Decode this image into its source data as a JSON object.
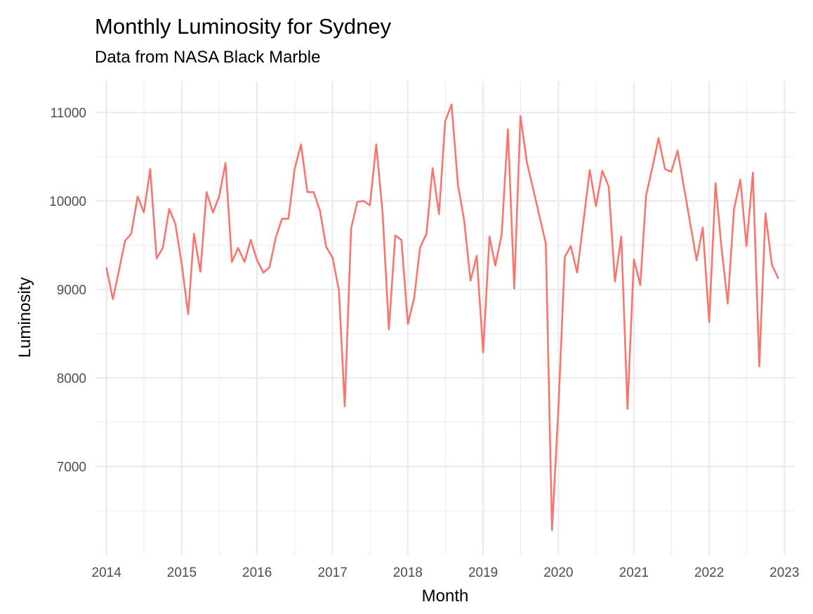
{
  "chart_data": {
    "type": "line",
    "title": "Monthly Luminosity for Sydney",
    "subtitle": "Data from NASA Black Marble",
    "xlabel": "Month",
    "ylabel": "Luminosity",
    "xlim": [
      "2013-11-12",
      "2023-02-20"
    ],
    "ylim": [
      6000,
      11350
    ],
    "x_ticks": [
      "2014",
      "2015",
      "2016",
      "2017",
      "2018",
      "2019",
      "2020",
      "2021",
      "2022",
      "2023"
    ],
    "y_ticks": [
      "7000",
      "8000",
      "9000",
      "10000",
      "11000"
    ],
    "grid": true,
    "series": [
      {
        "color": "#f8766d",
        "x": [
          "2014-01",
          "2014-02",
          "2014-03",
          "2014-04",
          "2014-05",
          "2014-06",
          "2014-07",
          "2014-08",
          "2014-09",
          "2014-10",
          "2014-11",
          "2014-12",
          "2015-01",
          "2015-02",
          "2015-03",
          "2015-04",
          "2015-05",
          "2015-06",
          "2015-07",
          "2015-08",
          "2015-09",
          "2015-10",
          "2015-11",
          "2015-12",
          "2016-01",
          "2016-02",
          "2016-03",
          "2016-04",
          "2016-05",
          "2016-06",
          "2016-07",
          "2016-08",
          "2016-09",
          "2016-10",
          "2016-11",
          "2016-12",
          "2017-01",
          "2017-02",
          "2017-03",
          "2017-04",
          "2017-05",
          "2017-06",
          "2017-07",
          "2017-08",
          "2017-09",
          "2017-10",
          "2017-11",
          "2017-12",
          "2018-01",
          "2018-02",
          "2018-03",
          "2018-04",
          "2018-05",
          "2018-06",
          "2018-07",
          "2018-08",
          "2018-09",
          "2018-10",
          "2018-11",
          "2018-12",
          "2019-01",
          "2019-02",
          "2019-03",
          "2019-04",
          "2019-05",
          "2019-06",
          "2019-07",
          "2019-08",
          "2019-11",
          "2019-12",
          "2020-01",
          "2020-02",
          "2020-03",
          "2020-04",
          "2020-05",
          "2020-06",
          "2020-07",
          "2020-08",
          "2020-09",
          "2020-10",
          "2020-11",
          "2020-12",
          "2021-01",
          "2021-02",
          "2021-03",
          "2021-04",
          "2021-05",
          "2021-06",
          "2021-07",
          "2021-08",
          "2021-11",
          "2021-12",
          "2022-01",
          "2022-02",
          "2022-03",
          "2022-04",
          "2022-05",
          "2022-06",
          "2022-07",
          "2022-08",
          "2022-09",
          "2022-10",
          "2022-11",
          "2022-12"
        ],
        "values": [
          9240,
          8890,
          9200,
          9550,
          9630,
          10050,
          9870,
          10360,
          9350,
          9470,
          9910,
          9740,
          9280,
          8720,
          9630,
          9200,
          10100,
          9870,
          10050,
          10430,
          9310,
          9470,
          9310,
          9560,
          9330,
          9190,
          9250,
          9590,
          9800,
          9800,
          10360,
          10640,
          10100,
          10100,
          9890,
          9480,
          9360,
          8990,
          7680,
          9690,
          9990,
          10000,
          9950,
          10640,
          9850,
          8550,
          9610,
          9560,
          8610,
          8910,
          9470,
          9630,
          10370,
          9850,
          10900,
          11090,
          10180,
          9780,
          9100,
          9380,
          8290,
          9600,
          9270,
          9620,
          10810,
          9010,
          10960,
          10440,
          9520,
          6280,
          7650,
          9370,
          9490,
          9190,
          9760,
          10350,
          9940,
          10340,
          10160,
          9090,
          9600,
          7650,
          9340,
          9050,
          10060,
          10380,
          10710,
          10360,
          10330,
          10570,
          9330,
          9700,
          8630,
          10200,
          9490,
          8840,
          9900,
          10240,
          9490,
          10320,
          8130,
          9860,
          9280,
          9130
        ]
      }
    ]
  }
}
